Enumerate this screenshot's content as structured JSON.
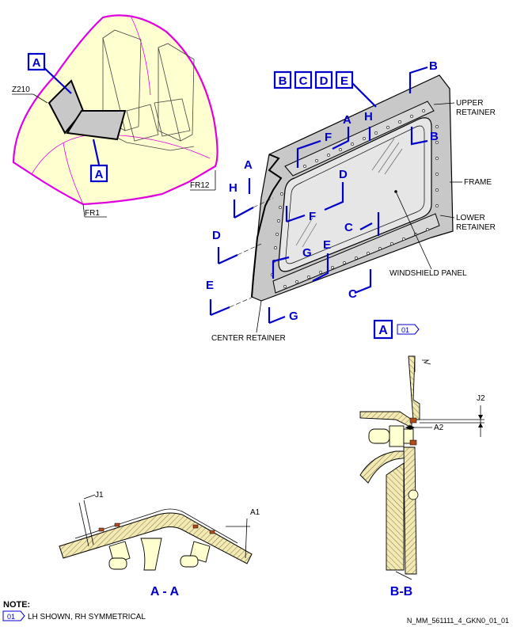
{
  "fig": {
    "view_a_marker": "A",
    "view_a_refnote": "01",
    "labels": {
      "z210": "Z210",
      "fr12": "FR12",
      "fr1": "FR1",
      "upper_retainer": [
        "UPPER",
        "RETAINER"
      ],
      "frame": "FRAME",
      "lower_retainer": [
        "LOWER",
        "RETAINER"
      ],
      "windshield_panel": "WINDSHIELD PANEL",
      "center_retainer": "CENTER RETAINER"
    },
    "header_markers": [
      "B",
      "C",
      "D",
      "E"
    ],
    "locator_markers": [
      "A",
      "A"
    ],
    "section_letters": {
      "b_top": "B",
      "b_mid": "B",
      "a_top": "A",
      "h_top": "H",
      "f_top": "F",
      "d_mid": "D",
      "a_left": "A",
      "h_left": "H",
      "f_low": "F",
      "c_mid": "C",
      "d_left": "D",
      "g_mid": "G",
      "e_mid": "E",
      "e_left": "E",
      "g_low": "G",
      "c_low": "C"
    },
    "section_aa": {
      "title": "A - A",
      "j1": "J1",
      "a1": "A1"
    },
    "section_bb": {
      "title": "B-B",
      "j2": "J2",
      "a2": "A2"
    }
  },
  "note": {
    "heading": "NOTE:",
    "ref": "01",
    "text": "LH SHOWN, RH SYMMETRICAL"
  },
  "drawing_ref": "N_MM_561111_4_GKN0_01_01",
  "colors": {
    "callout_blue": "#0000cc",
    "fuselage_outline": "#e000e0",
    "fuselage_fill": "#ffffd0",
    "panel_gray": "#c8c8c8",
    "seal_brown": "#b34a1a",
    "hatch_fill": "#f4eab0"
  }
}
